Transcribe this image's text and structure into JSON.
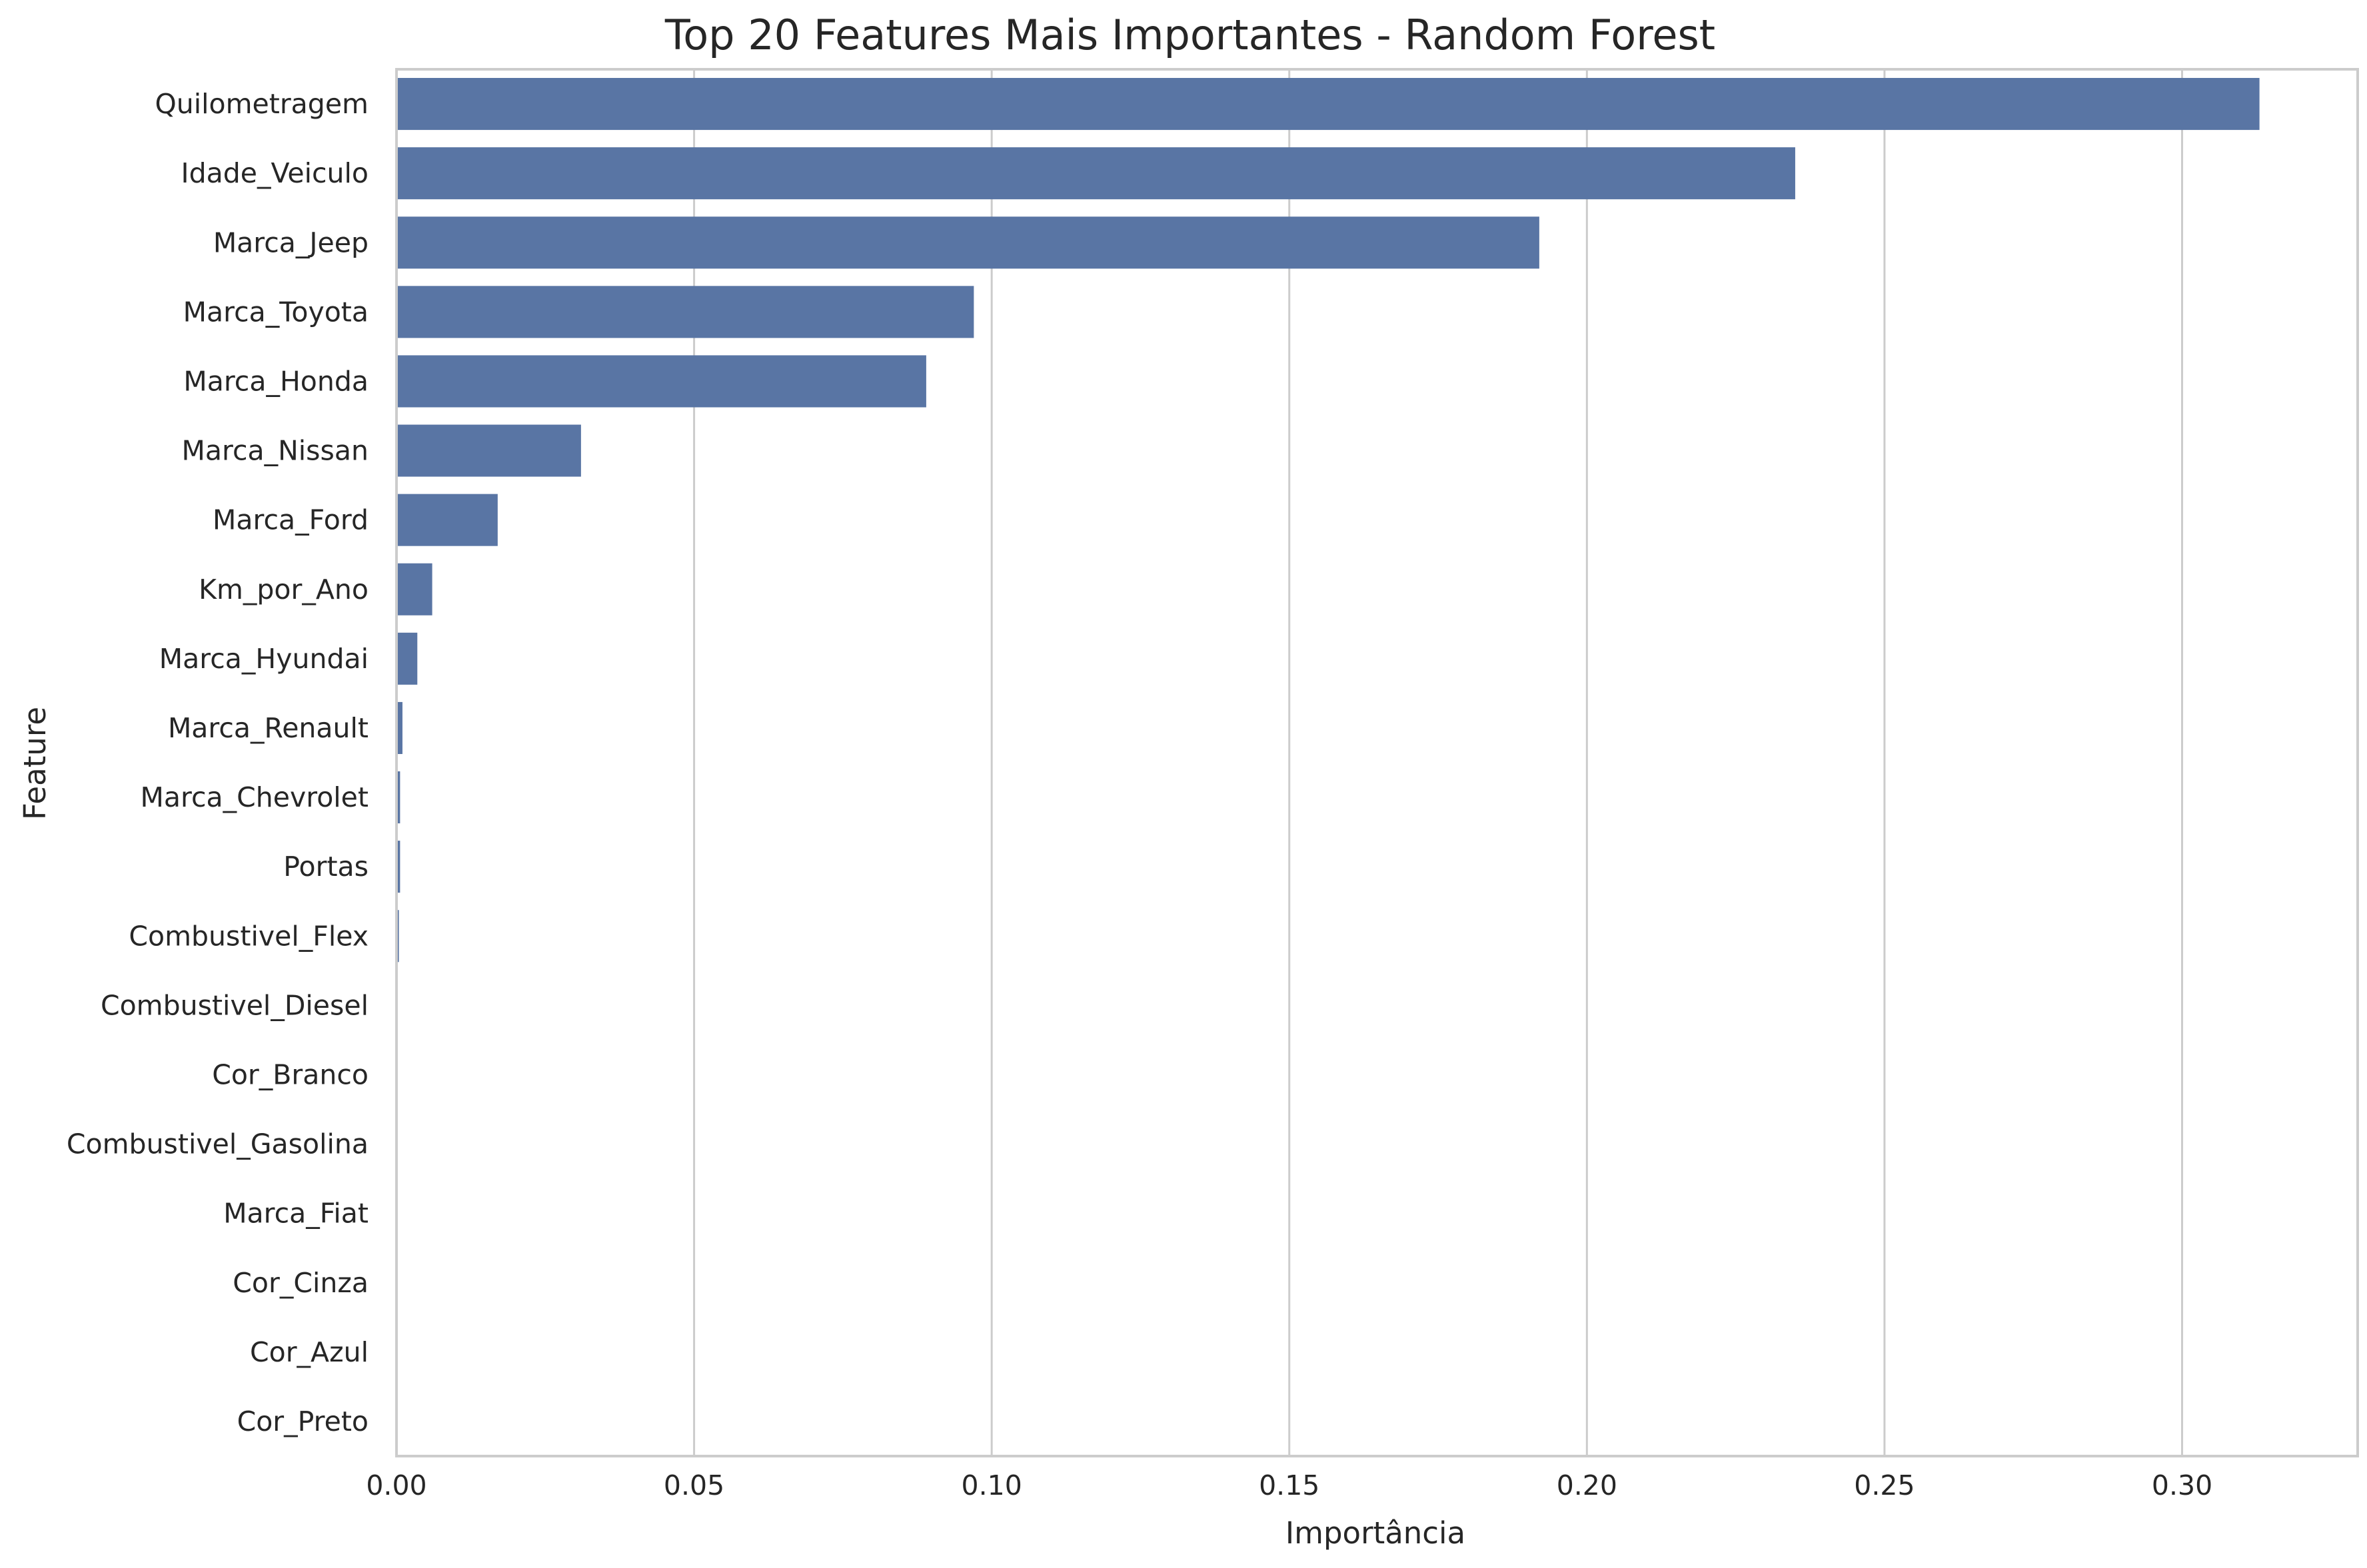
{
  "chart_data": {
    "type": "bar",
    "orientation": "horizontal",
    "title": "Top 20 Features Mais Importantes - Random Forest",
    "xlabel": "Importância",
    "ylabel": "Feature",
    "categories": [
      "Quilometragem",
      "Idade_Veiculo",
      "Marca_Jeep",
      "Marca_Toyota",
      "Marca_Honda",
      "Marca_Nissan",
      "Marca_Ford",
      "Km_por_Ano",
      "Marca_Hyundai",
      "Marca_Renault",
      "Marca_Chevrolet",
      "Portas",
      "Combustivel_Flex",
      "Combustivel_Diesel",
      "Cor_Branco",
      "Combustivel_Gasolina",
      "Marca_Fiat",
      "Cor_Cinza",
      "Cor_Azul",
      "Cor_Preto"
    ],
    "values": [
      0.313,
      0.235,
      0.192,
      0.097,
      0.089,
      0.031,
      0.017,
      0.006,
      0.0035,
      0.001,
      0.0006,
      0.0006,
      0.0004,
      0.0002,
      0.0001,
      0.0001,
      0.0001,
      5e-05,
      5e-05,
      5e-05
    ],
    "xlim": [
      0,
      0.3295
    ],
    "xticks": [
      0.0,
      0.05,
      0.1,
      0.15,
      0.2,
      0.25,
      0.3
    ],
    "xtick_labels": [
      "0.00",
      "0.05",
      "0.10",
      "0.15",
      "0.20",
      "0.25",
      "0.30"
    ],
    "grid": "vertical",
    "legend": "none",
    "bar_color": "#5975a4"
  }
}
